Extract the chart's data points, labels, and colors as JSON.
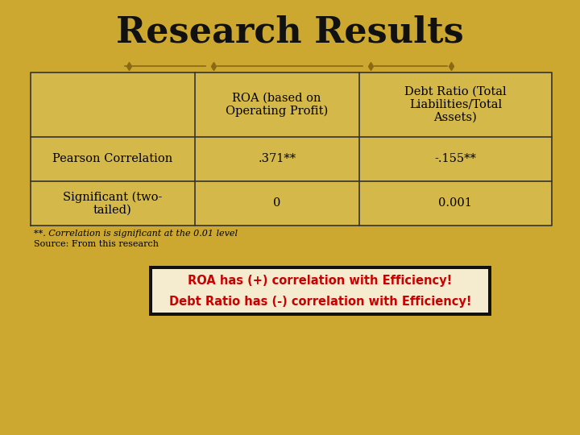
{
  "title": "Research Results",
  "bg_color": "#CCA830",
  "title_color": "#111111",
  "table_header_row": [
    "",
    "ROA (based on\nOperating Profit)",
    "Debt Ratio (Total\nLiabilities/Total\nAssets)"
  ],
  "table_rows": [
    [
      "Pearson Correlation",
      ".371**",
      "-.155**"
    ],
    [
      "Significant (two-\ntailed)",
      "0",
      "0.001"
    ]
  ],
  "footnote1": "**. Correlation is significant at the 0.01 level",
  "footnote2": "Source: From this research",
  "banner_line1": "ROA has (+) correlation with Efficiency!",
  "banner_line2": "Debt Ratio has (-) correlation with Efficiency!",
  "banner_bg": "#111111",
  "banner_interior": "#F5ECD0",
  "banner_text_color": "#CC0000",
  "table_border_color": "#333333",
  "table_cell_bg": "#D4B84A",
  "divider_color": "#8B6914",
  "fig_width": 7.2,
  "fig_height": 5.4,
  "dpi": 100
}
